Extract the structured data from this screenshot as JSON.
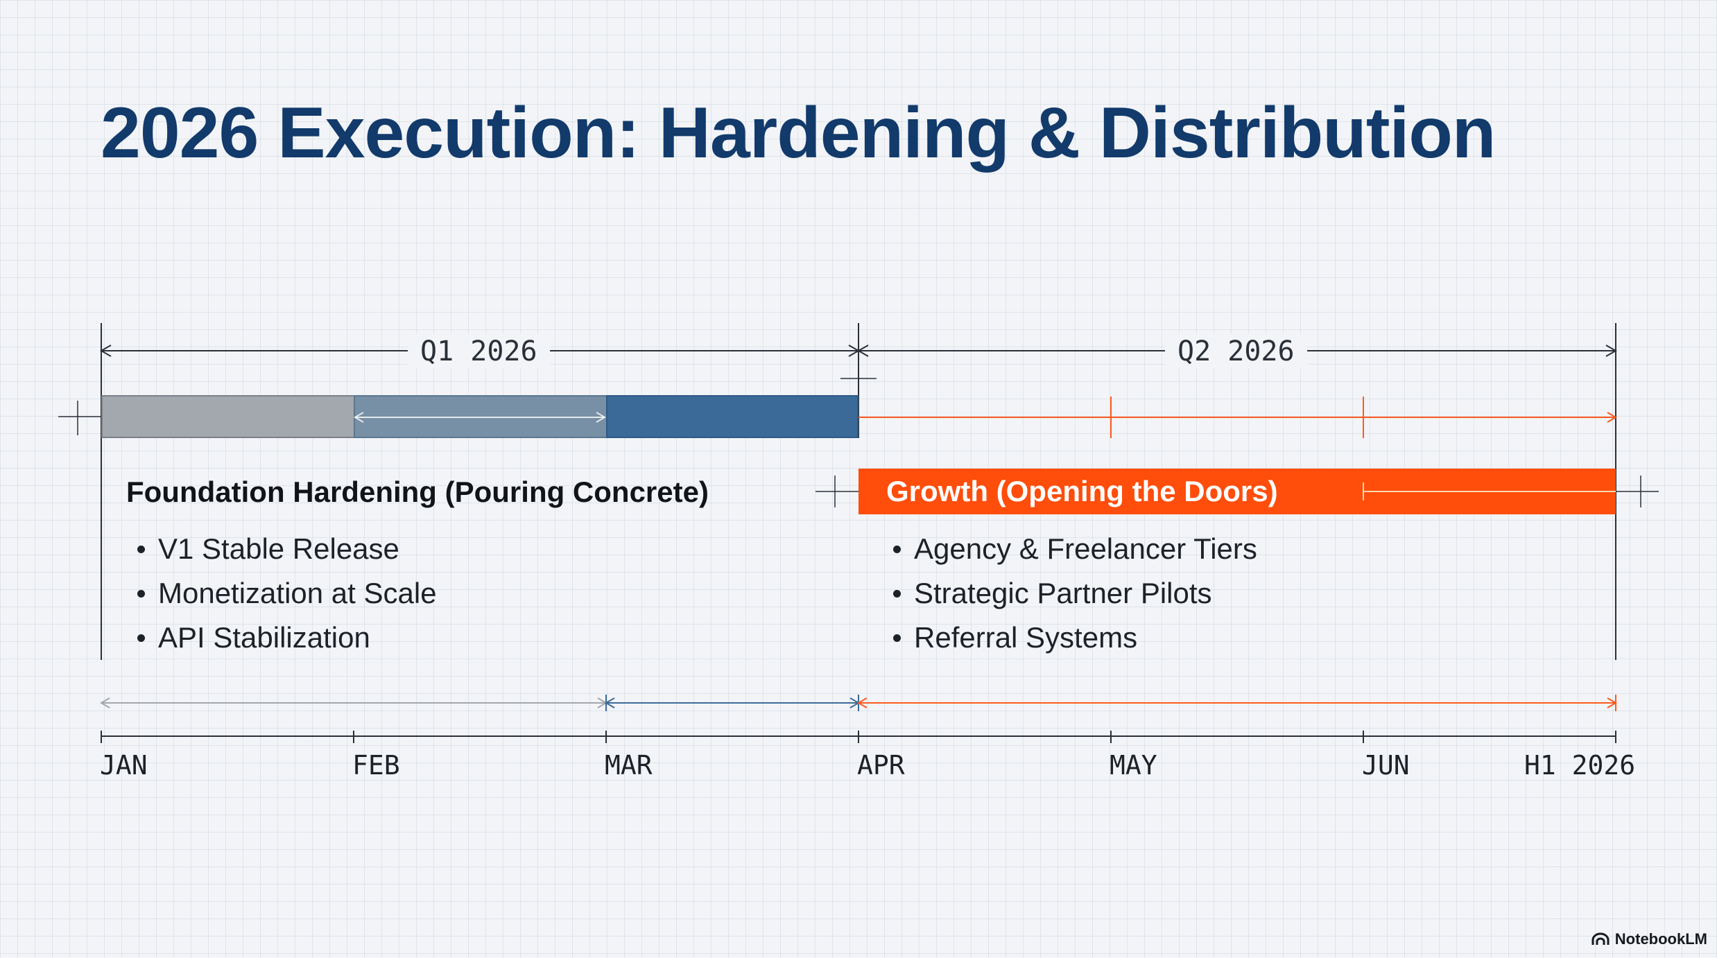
{
  "title": "2026 Execution: Hardening & Distribution",
  "quarters": [
    {
      "label": "Q1 2026"
    },
    {
      "label": "Q2 2026"
    }
  ],
  "phases": {
    "foundation": {
      "title": "Foundation Hardening (Pouring Concrete)",
      "items": [
        "V1 Stable Release",
        "Monetization at Scale",
        "API Stabilization"
      ]
    },
    "growth": {
      "title": "Growth (Opening the Doors)",
      "items": [
        "Agency & Freelancer Tiers",
        "Strategic Partner Pilots",
        "Referral Systems"
      ]
    }
  },
  "months": [
    "JAN",
    "FEB",
    "MAR",
    "APR",
    "MAY",
    "JUN"
  ],
  "end_label": "H1 2026",
  "brand": {
    "name": "NotebookLM",
    "icon": "notebooklm-logo-icon"
  },
  "colors": {
    "title": "#123a6b",
    "growth": "#ff4d0b",
    "foundation_dark": "#3c6a98",
    "foundation_mid": "#7890a6",
    "foundation_light": "#a3a8ae"
  }
}
